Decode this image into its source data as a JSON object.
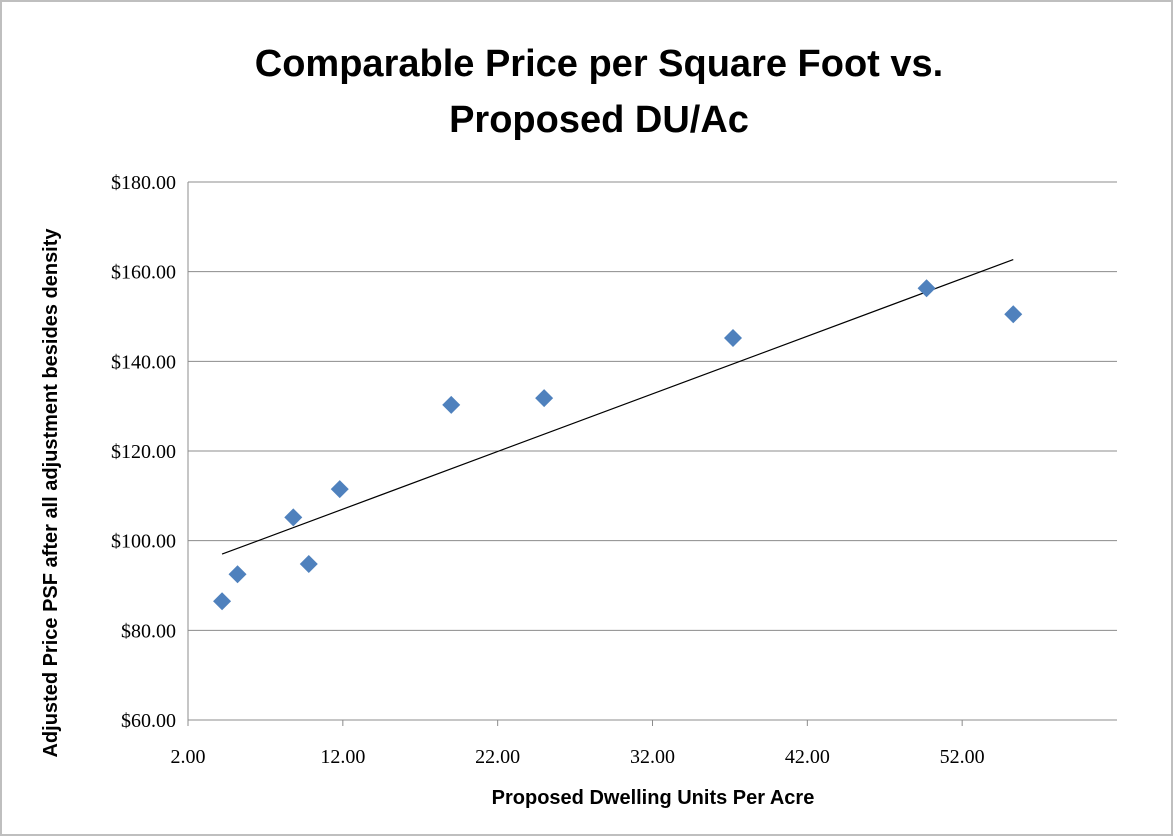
{
  "chart_data": {
    "type": "scatter",
    "title_lines": [
      "Comparable Price per Square Foot vs.",
      "Proposed DU/Ac"
    ],
    "xlabel": "Proposed Dwelling Units Per Acre",
    "ylabel": "Adjusted Price PSF after all adjustment besides density",
    "xlim": [
      2,
      62
    ],
    "ylim": [
      60,
      180
    ],
    "x_ticks": [
      2,
      12,
      22,
      32,
      42,
      52
    ],
    "x_tick_labels": [
      "2.00",
      "12.00",
      "22.00",
      "32.00",
      "42.00",
      "52.00"
    ],
    "y_ticks": [
      60,
      80,
      100,
      120,
      140,
      160,
      180
    ],
    "y_tick_labels": [
      "$60.00",
      "$80.00",
      "$100.00",
      "$120.00",
      "$140.00",
      "$160.00",
      "$180.00"
    ],
    "grid": "horizontal",
    "legend": "none",
    "series": [
      {
        "marker": "diamond",
        "color": "#4f81bd",
        "points": [
          {
            "x": 4.2,
            "y": 86.5
          },
          {
            "x": 5.2,
            "y": 92.5
          },
          {
            "x": 8.8,
            "y": 105.2
          },
          {
            "x": 9.8,
            "y": 94.8
          },
          {
            "x": 11.8,
            "y": 111.5
          },
          {
            "x": 19.0,
            "y": 130.3
          },
          {
            "x": 25.0,
            "y": 131.8
          },
          {
            "x": 37.2,
            "y": 145.2
          },
          {
            "x": 49.7,
            "y": 156.3
          },
          {
            "x": 55.3,
            "y": 150.5
          }
        ]
      }
    ],
    "trendline": {
      "type": "linear",
      "color": "#000000",
      "x_start": 4.2,
      "x_end": 55.3,
      "y_start": 97.0,
      "y_end": 162.7
    }
  }
}
